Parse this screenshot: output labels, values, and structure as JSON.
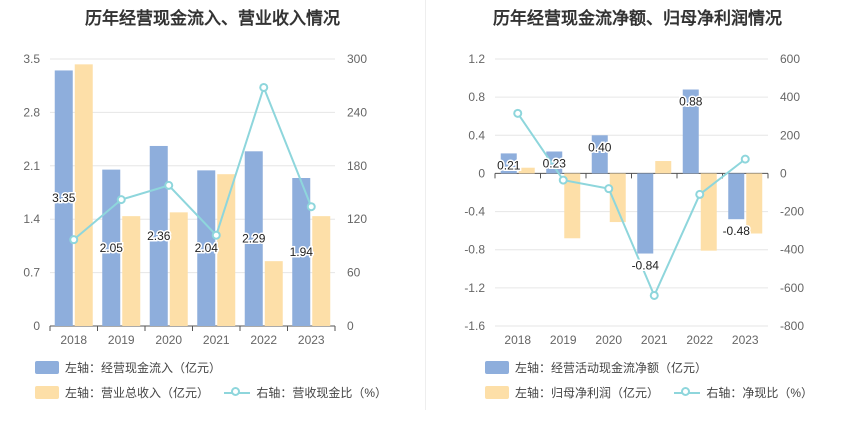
{
  "colors": {
    "bar_blue": "#8eaedc",
    "bar_orange": "#fddfa8",
    "line_teal": "#8ed6dc",
    "grid": "#e6e6e6",
    "axis_text": "#666666"
  },
  "chart_data": [
    {
      "type": "bar",
      "title": "历年经营现金流入、营业收入情况",
      "categories": [
        "2018",
        "2019",
        "2020",
        "2021",
        "2022",
        "2023"
      ],
      "y_left": {
        "ticks": [
          "0",
          "0.7",
          "1.4",
          "2.1",
          "2.8",
          "3.5"
        ],
        "range": [
          0,
          3.5
        ]
      },
      "y_right": {
        "ticks": [
          "0",
          "60",
          "120",
          "180",
          "240",
          "300"
        ],
        "range": [
          0,
          300
        ]
      },
      "grid": true,
      "legend_position": "bottom-left",
      "series": [
        {
          "name": "左轴：经营现金流入（亿元）",
          "type": "bar",
          "axis": "left",
          "color_key": "bar_blue",
          "values": [
            3.35,
            2.05,
            2.36,
            2.04,
            2.29,
            1.94
          ],
          "labels": [
            "3.35",
            "2.05",
            "2.36",
            "2.04",
            "2.29",
            "1.94"
          ]
        },
        {
          "name": "左轴：营业总收入（亿元）",
          "type": "bar",
          "axis": "left",
          "color_key": "bar_orange",
          "values": [
            3.43,
            1.44,
            1.49,
            1.99,
            0.85,
            1.44
          ]
        },
        {
          "name": "右轴：营收现金比（%）",
          "type": "line",
          "axis": "right",
          "color_key": "line_teal",
          "values": [
            97,
            142,
            158,
            102,
            268,
            134
          ]
        }
      ]
    },
    {
      "type": "bar",
      "title": "历年经营现金流净额、归母净利润情况",
      "categories": [
        "2018",
        "2019",
        "2020",
        "2021",
        "2022",
        "2023"
      ],
      "y_left": {
        "ticks": [
          "-1.6",
          "-1.2",
          "-0.8",
          "-0.4",
          "0",
          "0.4",
          "0.8",
          "1.2"
        ],
        "range": [
          -1.6,
          1.2
        ]
      },
      "y_right": {
        "ticks": [
          "-800",
          "-600",
          "-400",
          "-200",
          "0",
          "200",
          "400",
          "600"
        ],
        "range": [
          -800,
          600
        ]
      },
      "grid": true,
      "legend_position": "bottom-left",
      "series": [
        {
          "name": "左轴：经营活动现金流净额（亿元）",
          "type": "bar",
          "axis": "left",
          "color_key": "bar_blue",
          "values": [
            0.21,
            0.23,
            0.4,
            -0.84,
            0.88,
            -0.48
          ],
          "labels": [
            "0.21",
            "0.23",
            "0.40",
            "-0.84",
            "0.88",
            "-0.48"
          ]
        },
        {
          "name": "左轴：归母净利润（亿元）",
          "type": "bar",
          "axis": "left",
          "color_key": "bar_orange",
          "values": [
            0.06,
            -0.68,
            -0.51,
            0.13,
            -0.81,
            -0.63
          ]
        },
        {
          "name": "右轴：净现比（%）",
          "type": "line",
          "axis": "right",
          "color_key": "line_teal",
          "values": [
            315,
            -35,
            -80,
            -640,
            -110,
            75
          ]
        }
      ]
    }
  ]
}
